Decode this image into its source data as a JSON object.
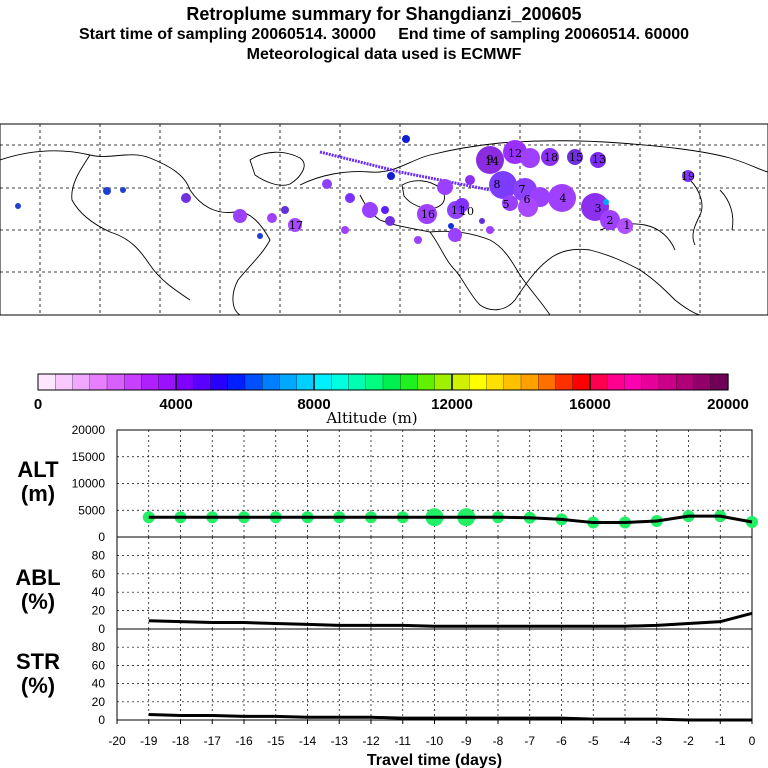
{
  "header": {
    "title": "Retroplume summary for Shangdianzi_200605",
    "start": "Start time of sampling 20060514. 30000",
    "end": "End time of sampling 20060514. 60000",
    "met": "Meteorological data used is ECMWF"
  },
  "colorbar": {
    "label": "Altitude (m)",
    "ticks": [
      "0",
      "4000",
      "8000",
      "12000",
      "16000",
      "20000"
    ],
    "colors": [
      "#ffe6ff",
      "#f8c8ff",
      "#f0a8ff",
      "#e680ff",
      "#d860ff",
      "#c840ff",
      "#b020ff",
      "#9a10ff",
      "#8000ff",
      "#5a00ff",
      "#2800ff",
      "#0020ff",
      "#0050ff",
      "#0080ff",
      "#00a8ff",
      "#00d0ff",
      "#00f0ff",
      "#00ffe0",
      "#00ffb0",
      "#00ff80",
      "#00f050",
      "#20f020",
      "#60f000",
      "#a0f000",
      "#d0f000",
      "#ffff00",
      "#ffe000",
      "#ffc000",
      "#ffa000",
      "#ff7000",
      "#ff3000",
      "#ff0000",
      "#ff0050",
      "#ff0090",
      "#ff00b0",
      "#e8009a",
      "#cc0088",
      "#b00078",
      "#900068",
      "#700058"
    ]
  },
  "map": {
    "plume_labels": [
      "14",
      "12",
      "18",
      "15",
      "13",
      "9",
      "8",
      "7",
      "6",
      "5",
      "4",
      "3",
      "2",
      "1",
      "19",
      "17",
      "16",
      "11",
      "10"
    ]
  },
  "chart_data": [
    {
      "type": "line",
      "name": "ALT",
      "ylabel": "ALT\n(m)",
      "ylim": [
        0,
        20000
      ],
      "yticks": [
        "0",
        "5000",
        "10000",
        "15000",
        "20000"
      ],
      "x": [
        -19,
        -18,
        -17,
        -16,
        -15,
        -14,
        -13,
        -12,
        -11,
        -10,
        -9,
        -8,
        -7,
        -6,
        -5,
        -4,
        -3,
        -2,
        -1,
        0
      ],
      "values": [
        3700,
        3700,
        3700,
        3700,
        3700,
        3700,
        3700,
        3700,
        3700,
        3700,
        3700,
        3700,
        3600,
        3300,
        2700,
        2700,
        3000,
        3900,
        3900,
        2800
      ],
      "marker_color": "#22ee66"
    },
    {
      "type": "line",
      "name": "ABL",
      "ylabel": "ABL\n(%)",
      "ylim": [
        0,
        100
      ],
      "yticks": [
        "0",
        "20",
        "40",
        "60",
        "80"
      ],
      "x": [
        -19,
        -18,
        -17,
        -16,
        -15,
        -14,
        -13,
        -12,
        -11,
        -10,
        -9,
        -8,
        -7,
        -6,
        -5,
        -4,
        -3,
        -2,
        -1,
        0
      ],
      "values": [
        9,
        8,
        7,
        7,
        6,
        5,
        4,
        4,
        4,
        3,
        3,
        3,
        3,
        3,
        3,
        3,
        4,
        6,
        8,
        17
      ]
    },
    {
      "type": "line",
      "name": "STR",
      "ylabel": "STR\n(%)",
      "ylim": [
        0,
        100
      ],
      "yticks": [
        "0",
        "20",
        "40",
        "60",
        "80"
      ],
      "x": [
        -19,
        -18,
        -17,
        -16,
        -15,
        -14,
        -13,
        -12,
        -11,
        -10,
        -9,
        -8,
        -7,
        -6,
        -5,
        -4,
        -3,
        -2,
        -1,
        0
      ],
      "values": [
        6,
        5,
        5,
        4,
        4,
        3,
        3,
        3,
        2,
        2,
        2,
        2,
        2,
        2,
        1,
        1,
        1,
        0,
        0,
        0
      ]
    }
  ],
  "xaxis": {
    "ticks": [
      "-20",
      "-19",
      "-18",
      "-17",
      "-16",
      "-15",
      "-14",
      "-13",
      "-12",
      "-11",
      "-10",
      "-9",
      "-8",
      "-7",
      "-6",
      "-5",
      "-4",
      "-3",
      "-2",
      "-1",
      "0"
    ],
    "label": "Travel time (days)"
  }
}
